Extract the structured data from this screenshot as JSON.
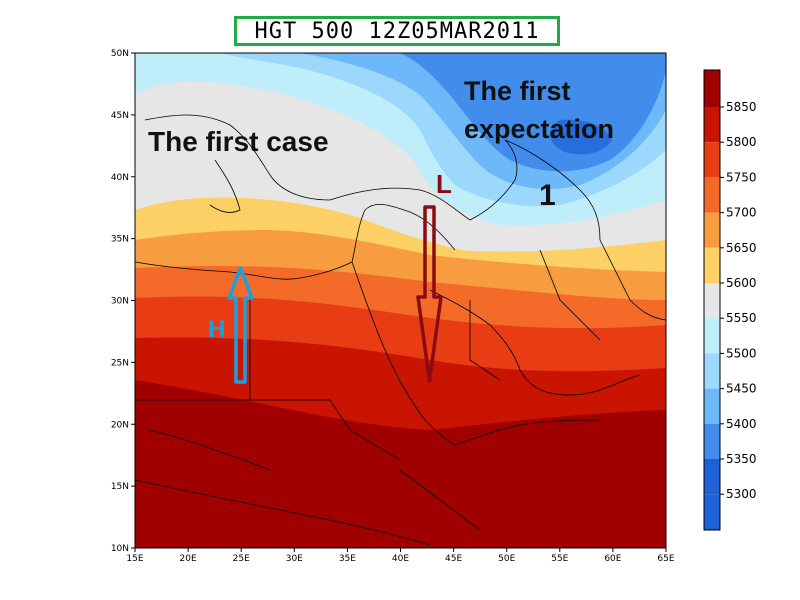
{
  "title": "HGT 500 12Z05MAR2011",
  "map": {
    "lat_labels": [
      "50N",
      "45N",
      "40N",
      "35N",
      "30N",
      "25N",
      "20N",
      "15N",
      "10N"
    ],
    "lon_labels": [
      "15E",
      "20E",
      "25E",
      "30E",
      "35E",
      "40E",
      "45E",
      "50E",
      "55E",
      "60E",
      "65E"
    ],
    "lon_range": [
      15,
      65
    ],
    "lat_range": [
      10,
      50
    ]
  },
  "annotations": {
    "first_case": "The first case",
    "first_expectation_line1": "The first",
    "first_expectation_line2": "expectation",
    "number_label": "1",
    "high_label": "H",
    "low_label": "L"
  },
  "colorbar": {
    "labels": [
      "5850",
      "5800",
      "5750",
      "5700",
      "5650",
      "5600",
      "5550",
      "5500",
      "5450",
      "5400",
      "5350",
      "5300"
    ],
    "colors": [
      "#a00000",
      "#c81400",
      "#e83c14",
      "#f46a28",
      "#f89c40",
      "#fcd064",
      "#e6e6e6",
      "#bfeefa",
      "#9bd8fc",
      "#6cb8f8",
      "#428cec",
      "#1e60d8"
    ]
  },
  "colors": {
    "title_border": "#22aa44",
    "high_arrow": "#1aa0e0",
    "low_arrow": "#8c0a14"
  }
}
